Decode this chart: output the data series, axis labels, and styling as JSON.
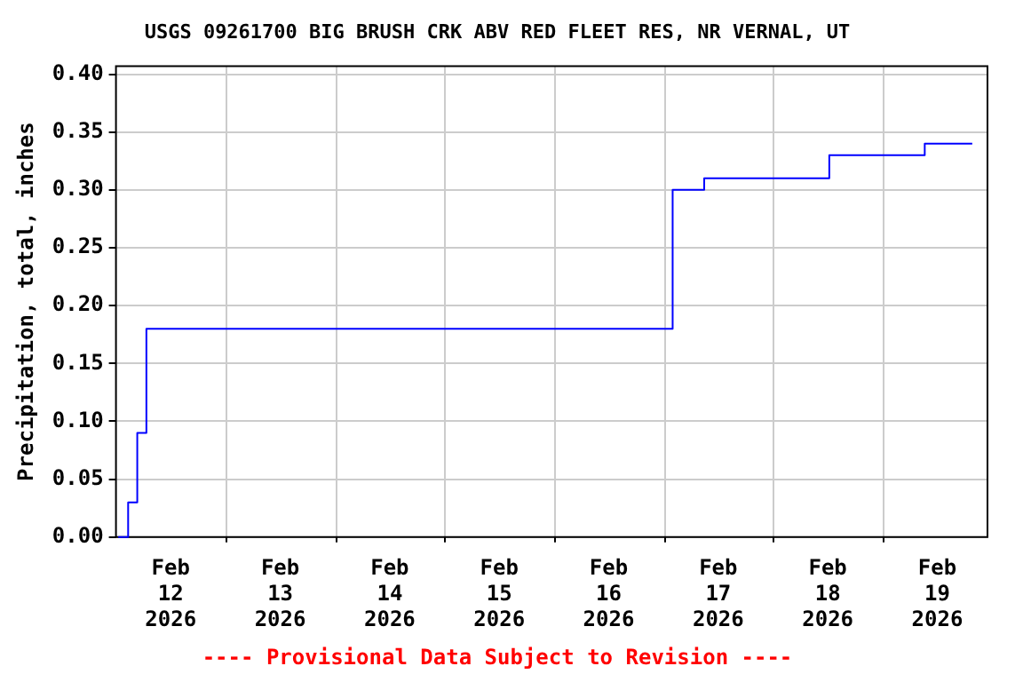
{
  "chart_data": {
    "type": "step",
    "title": "USGS 09261700 BIG BRUSH CRK ABV RED FLEET RES, NR VERNAL, UT",
    "ylabel": "Precipitation, total, inches",
    "annotations": [
      "---- Provisional Data Subject to Revision ----"
    ],
    "series": [
      {
        "color": "#0000ff",
        "x": [
          "2026-02-12T00:30",
          "2026-02-12T02:40",
          "2026-02-12T04:40",
          "2026-02-12T06:40",
          "2026-02-17T02:00",
          "2026-02-17T08:55",
          "2026-02-18T12:20",
          "2026-02-19T09:15",
          "2026-02-19T19:40"
        ],
        "values": [
          0,
          0,
          0.03,
          0.09,
          0.18,
          0.3,
          0.31,
          0.33,
          0.34
        ]
      }
    ],
    "xlim": [
      "2026-02-12T00:00",
      "2026-02-19T23:00"
    ],
    "xticks": [
      {
        "value": "2026-02-12T12:00",
        "label": "Feb\n12\n2026"
      },
      {
        "value": "2026-02-13T00:00",
        "label": null
      },
      {
        "value": "2026-02-13T12:00",
        "label": "Feb\n13\n2026"
      },
      {
        "value": "2026-02-14T00:00",
        "label": null
      },
      {
        "value": "2026-02-14T12:00",
        "label": "Feb\n14\n2026"
      },
      {
        "value": "2026-02-15T00:00",
        "label": null
      },
      {
        "value": "2026-02-15T12:00",
        "label": "Feb\n15\n2026"
      },
      {
        "value": "2026-02-16T00:00",
        "label": null
      },
      {
        "value": "2026-02-16T12:00",
        "label": "Feb\n16\n2026"
      },
      {
        "value": "2026-02-17T00:00",
        "label": null
      },
      {
        "value": "2026-02-17T12:00",
        "label": "Feb\n17\n2026"
      },
      {
        "value": "2026-02-18T00:00",
        "label": null
      },
      {
        "value": "2026-02-18T12:00",
        "label": "Feb\n18\n2026"
      },
      {
        "value": "2026-02-19T00:00",
        "label": null
      },
      {
        "value": "2026-02-19T12:00",
        "label": "Feb\n19\n2026"
      }
    ],
    "ylim": [
      0,
      0.407
    ],
    "yticks": [
      {
        "value": 0,
        "label": "0.00"
      },
      {
        "value": 0.05,
        "label": "0.05"
      },
      {
        "value": 0.1,
        "label": "0.10"
      },
      {
        "value": 0.15,
        "label": "0.15"
      },
      {
        "value": 0.2,
        "label": "0.20"
      },
      {
        "value": 0.25,
        "label": "0.25"
      },
      {
        "value": 0.3,
        "label": "0.30"
      },
      {
        "value": 0.35,
        "label": "0.35"
      },
      {
        "value": 0.4,
        "label": "0.40"
      }
    ],
    "grid": true,
    "legend": false,
    "line_style": "solid",
    "marker": "none"
  }
}
